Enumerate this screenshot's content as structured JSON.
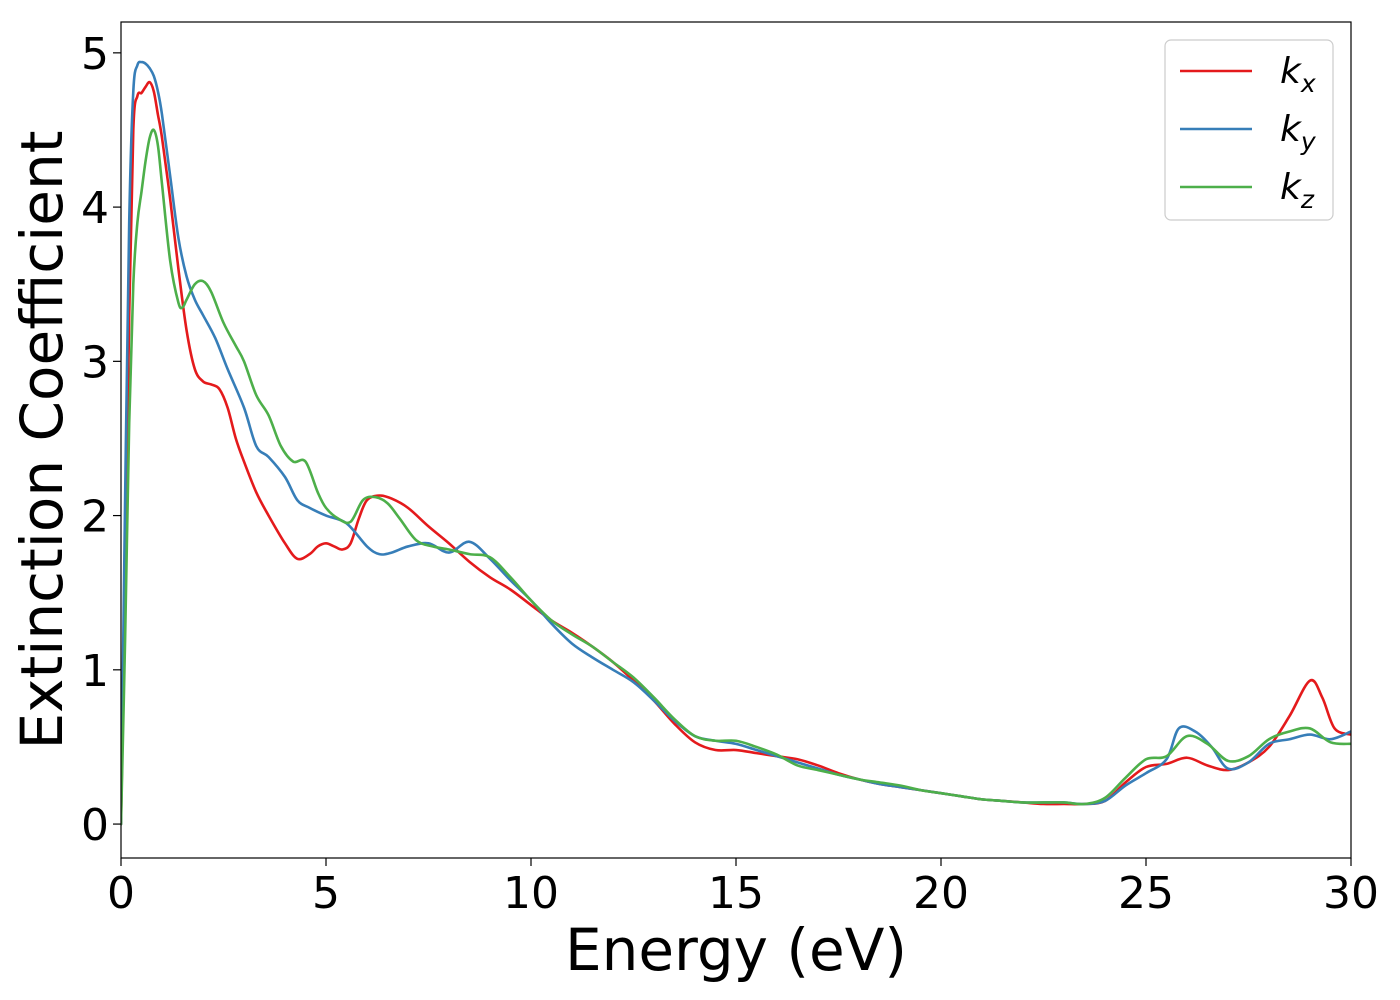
{
  "chart_data": {
    "type": "line",
    "title": "",
    "xlabel": "Energy (eV)",
    "ylabel": "Extinction Coefficient",
    "xlim": [
      0,
      30
    ],
    "ylim": [
      -0.22,
      5.2
    ],
    "xticks": [
      0,
      5,
      10,
      15,
      20,
      25,
      30
    ],
    "yticks": [
      0,
      1,
      2,
      3,
      4,
      5
    ],
    "grid": false,
    "legend_position": "top-right",
    "series": [
      {
        "name": "k_x",
        "label_main": "k",
        "label_sub": "x",
        "color": "#e41a1c",
        "x": [
          0,
          0.1,
          0.2,
          0.3,
          0.4,
          0.5,
          0.6,
          0.7,
          0.8,
          0.9,
          1.0,
          1.2,
          1.4,
          1.6,
          1.8,
          2.0,
          2.2,
          2.4,
          2.6,
          2.8,
          3.0,
          3.3,
          3.6,
          4.0,
          4.3,
          4.6,
          4.8,
          5.0,
          5.2,
          5.4,
          5.6,
          5.8,
          6.0,
          6.3,
          6.6,
          7.0,
          7.5,
          8.0,
          8.5,
          9.0,
          9.5,
          10.0,
          10.5,
          11.0,
          11.5,
          12.0,
          12.5,
          13.0,
          13.5,
          14.0,
          14.5,
          15.0,
          15.5,
          16.0,
          16.5,
          17.0,
          17.5,
          18.0,
          18.5,
          19.0,
          19.5,
          20.0,
          20.5,
          21.0,
          21.5,
          22.0,
          22.5,
          23.0,
          23.5,
          24.0,
          24.5,
          25.0,
          25.5,
          26.0,
          26.5,
          27.0,
          27.5,
          28.0,
          28.5,
          29.0,
          29.3,
          29.6,
          30.0
        ],
        "y": [
          0,
          1.6,
          3.3,
          4.5,
          4.72,
          4.74,
          4.78,
          4.81,
          4.75,
          4.6,
          4.45,
          4.05,
          3.6,
          3.2,
          2.95,
          2.87,
          2.85,
          2.82,
          2.7,
          2.5,
          2.35,
          2.15,
          2.0,
          1.82,
          1.72,
          1.75,
          1.8,
          1.82,
          1.8,
          1.78,
          1.82,
          1.98,
          2.1,
          2.13,
          2.11,
          2.05,
          1.93,
          1.82,
          1.7,
          1.6,
          1.52,
          1.42,
          1.32,
          1.24,
          1.15,
          1.05,
          0.93,
          0.8,
          0.65,
          0.53,
          0.48,
          0.48,
          0.46,
          0.44,
          0.42,
          0.38,
          0.33,
          0.29,
          0.26,
          0.24,
          0.22,
          0.2,
          0.18,
          0.16,
          0.15,
          0.14,
          0.13,
          0.13,
          0.13,
          0.15,
          0.27,
          0.37,
          0.39,
          0.43,
          0.38,
          0.35,
          0.4,
          0.5,
          0.7,
          0.93,
          0.82,
          0.62,
          0.58
        ]
      },
      {
        "name": "k_y",
        "label_main": "k",
        "label_sub": "y",
        "color": "#377eb8",
        "x": [
          0,
          0.1,
          0.2,
          0.3,
          0.4,
          0.5,
          0.6,
          0.7,
          0.8,
          0.9,
          1.0,
          1.2,
          1.4,
          1.6,
          1.8,
          2.0,
          2.3,
          2.6,
          3.0,
          3.3,
          3.6,
          4.0,
          4.3,
          4.6,
          5.0,
          5.5,
          6.0,
          6.3,
          6.6,
          7.0,
          7.5,
          8.0,
          8.5,
          9.0,
          9.5,
          10.0,
          10.5,
          11.0,
          11.5,
          12.0,
          12.5,
          13.0,
          13.5,
          14.0,
          14.5,
          15.0,
          15.5,
          16.0,
          16.5,
          17.0,
          17.5,
          18.0,
          18.5,
          19.0,
          19.5,
          20.0,
          20.5,
          21.0,
          21.5,
          22.0,
          22.5,
          23.0,
          23.5,
          24.0,
          24.5,
          25.0,
          25.5,
          25.8,
          26.2,
          26.6,
          27.0,
          27.5,
          28.0,
          28.5,
          29.0,
          29.5,
          30.0
        ],
        "y": [
          0,
          2.1,
          3.9,
          4.75,
          4.92,
          4.94,
          4.93,
          4.9,
          4.85,
          4.75,
          4.6,
          4.2,
          3.8,
          3.55,
          3.4,
          3.3,
          3.15,
          2.95,
          2.7,
          2.45,
          2.38,
          2.25,
          2.1,
          2.05,
          2.0,
          1.95,
          1.8,
          1.75,
          1.76,
          1.8,
          1.82,
          1.76,
          1.83,
          1.72,
          1.58,
          1.45,
          1.3,
          1.17,
          1.08,
          1.0,
          0.92,
          0.8,
          0.67,
          0.57,
          0.54,
          0.52,
          0.48,
          0.44,
          0.4,
          0.36,
          0.32,
          0.29,
          0.26,
          0.24,
          0.22,
          0.2,
          0.18,
          0.16,
          0.15,
          0.14,
          0.14,
          0.14,
          0.13,
          0.15,
          0.25,
          0.33,
          0.42,
          0.62,
          0.6,
          0.5,
          0.36,
          0.4,
          0.52,
          0.55,
          0.58,
          0.55,
          0.6
        ]
      },
      {
        "name": "k_z",
        "label_main": "k",
        "label_sub": "z",
        "color": "#4daf4a",
        "x": [
          0,
          0.1,
          0.2,
          0.3,
          0.4,
          0.5,
          0.6,
          0.7,
          0.8,
          0.9,
          1.0,
          1.2,
          1.4,
          1.5,
          1.6,
          1.8,
          2.0,
          2.2,
          2.5,
          2.8,
          3.0,
          3.3,
          3.6,
          3.9,
          4.2,
          4.5,
          4.8,
          5.0,
          5.3,
          5.6,
          5.9,
          6.2,
          6.5,
          6.8,
          7.2,
          7.6,
          8.0,
          8.5,
          9.0,
          9.5,
          10.0,
          10.5,
          11.0,
          11.5,
          12.0,
          12.5,
          13.0,
          13.5,
          14.0,
          14.5,
          15.0,
          15.5,
          16.0,
          16.5,
          17.0,
          17.5,
          18.0,
          18.5,
          19.0,
          19.5,
          20.0,
          20.5,
          21.0,
          21.5,
          22.0,
          22.5,
          23.0,
          23.5,
          24.0,
          24.5,
          25.0,
          25.5,
          26.0,
          26.5,
          27.0,
          27.5,
          28.0,
          28.5,
          29.0,
          29.5,
          30.0
        ],
        "y": [
          0,
          1.2,
          2.6,
          3.5,
          3.9,
          4.1,
          4.3,
          4.45,
          4.5,
          4.4,
          4.15,
          3.65,
          3.38,
          3.35,
          3.4,
          3.5,
          3.52,
          3.45,
          3.25,
          3.1,
          3.0,
          2.78,
          2.65,
          2.45,
          2.35,
          2.35,
          2.15,
          2.05,
          1.98,
          1.96,
          2.1,
          2.12,
          2.08,
          1.98,
          1.84,
          1.8,
          1.78,
          1.75,
          1.73,
          1.6,
          1.45,
          1.32,
          1.23,
          1.15,
          1.05,
          0.95,
          0.82,
          0.68,
          0.57,
          0.54,
          0.54,
          0.5,
          0.45,
          0.38,
          0.35,
          0.32,
          0.29,
          0.27,
          0.25,
          0.22,
          0.2,
          0.18,
          0.16,
          0.15,
          0.14,
          0.14,
          0.14,
          0.13,
          0.17,
          0.3,
          0.42,
          0.44,
          0.57,
          0.52,
          0.41,
          0.44,
          0.55,
          0.6,
          0.62,
          0.53,
          0.52
        ]
      }
    ]
  }
}
